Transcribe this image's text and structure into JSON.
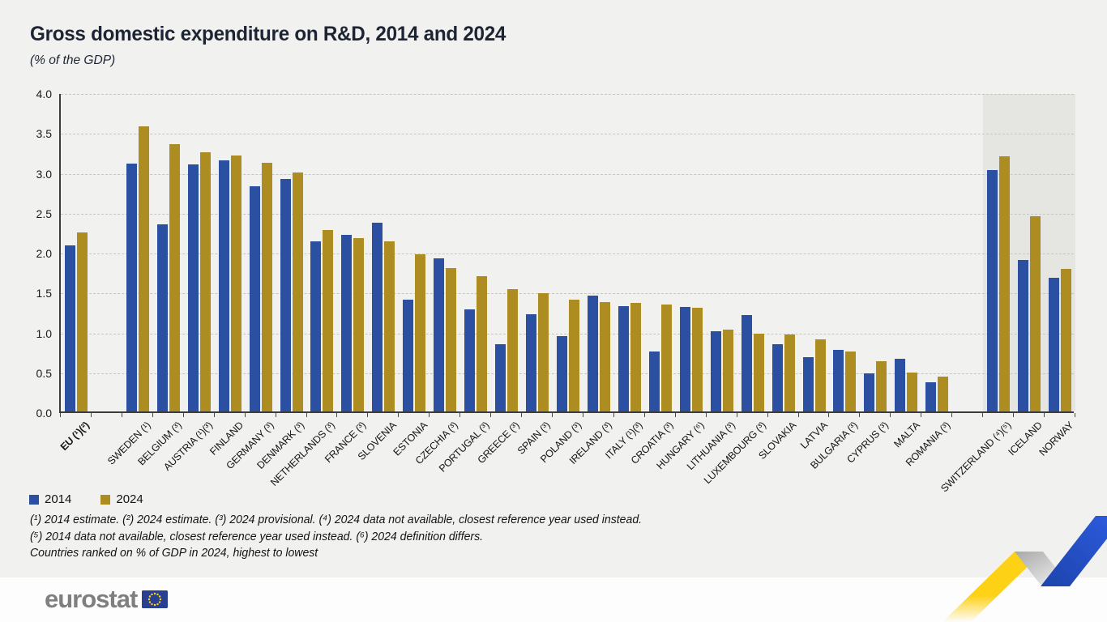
{
  "header": {
    "title": "Gross domestic expenditure on R&D, 2014 and 2024",
    "subtitle": "(% of the GDP)"
  },
  "legend": {
    "items": [
      {
        "label": "2014",
        "color": "#2b50a1"
      },
      {
        "label": "2024",
        "color": "#ad8c21"
      }
    ]
  },
  "footnotes": [
    "(¹) 2014 estimate. (²) 2024 estimate. (³) 2024 provisional. (⁴) 2024 data not available, closest reference year used instead.",
    "(⁵) 2014 data not available, closest reference year used instead. (⁶) 2024 definition differs.",
    "Countries ranked on % of GDP in 2024, highest to lowest"
  ],
  "logo": {
    "text": "eurostat"
  },
  "colors": {
    "background": "#f1f1ef",
    "footer": "#fdfdfd",
    "bar_2014": "#2b50a1",
    "bar_2024": "#ad8c21",
    "shaded_region": "#e5e5e2",
    "gridline": "#c6c6c3",
    "ribbon_yellow": "#fdd116",
    "ribbon_blue": "#2453d2",
    "eu_flag_blue": "#293f8f"
  },
  "chart_data": {
    "type": "bar",
    "title": "Gross domestic expenditure on R&D, 2014 and 2024",
    "ylabel": "% of the GDP",
    "xlabel": "",
    "ylim": [
      0,
      4
    ],
    "ytick_step": 0.5,
    "yticks": [
      "4.0",
      "3.5",
      "3.0",
      "2.5",
      "2.0",
      "1.5",
      "1.0",
      "0.5",
      "0.0"
    ],
    "grid": "dashed horizontal",
    "legend_position": "bottom-left",
    "categories": [
      "EU (¹)(²)",
      "SWEDEN (¹)",
      "BELGIUM (³)",
      "AUSTRIA (¹)(³)",
      "FINLAND",
      "GERMANY (³)",
      "DENMARK (³)",
      "NETHERLANDS (³)",
      "FRANCE (³)",
      "SLOVENIA",
      "ESTONIA",
      "CZECHIA (³)",
      "PORTUGAL (³)",
      "GREECE (³)",
      "SPAIN (³)",
      "POLAND (³)",
      "IRELAND (³)",
      "ITALY (¹)(³)",
      "CROATIA (³)",
      "HUNGARY (⁶)",
      "LITHUANIA (³)",
      "LUXEMBOURG (³)",
      "SLOVAKIA",
      "LATVIA",
      "BULGARIA (³)",
      "CYPRUS (³)",
      "MALTA",
      "ROMANIA (³)",
      "SWITZERLAND (⁴)(⁵)",
      "ICELAND",
      "NORWAY"
    ],
    "series": [
      {
        "name": "2014",
        "color": "#2b50a1",
        "values": [
          2.08,
          3.11,
          2.35,
          3.1,
          3.15,
          2.82,
          2.91,
          2.13,
          2.21,
          2.37,
          1.4,
          1.92,
          1.28,
          0.84,
          1.22,
          0.94,
          1.45,
          1.32,
          0.75,
          1.31,
          1.01,
          1.21,
          0.84,
          0.68,
          0.77,
          0.48,
          0.66,
          0.37,
          3.03,
          1.9,
          1.68
        ]
      },
      {
        "name": "2024",
        "color": "#ad8c21",
        "values": [
          2.24,
          3.57,
          3.35,
          3.25,
          3.21,
          3.12,
          3.0,
          2.27,
          2.17,
          2.13,
          1.97,
          1.8,
          1.7,
          1.53,
          1.48,
          1.4,
          1.37,
          1.36,
          1.34,
          1.3,
          1.03,
          0.97,
          0.96,
          0.9,
          0.75,
          0.63,
          0.49,
          0.44,
          3.2,
          2.45,
          1.79
        ]
      }
    ],
    "gap_after_indices": [
      0,
      27
    ],
    "shaded_from_index": 28,
    "bold_indices": [
      0
    ]
  }
}
